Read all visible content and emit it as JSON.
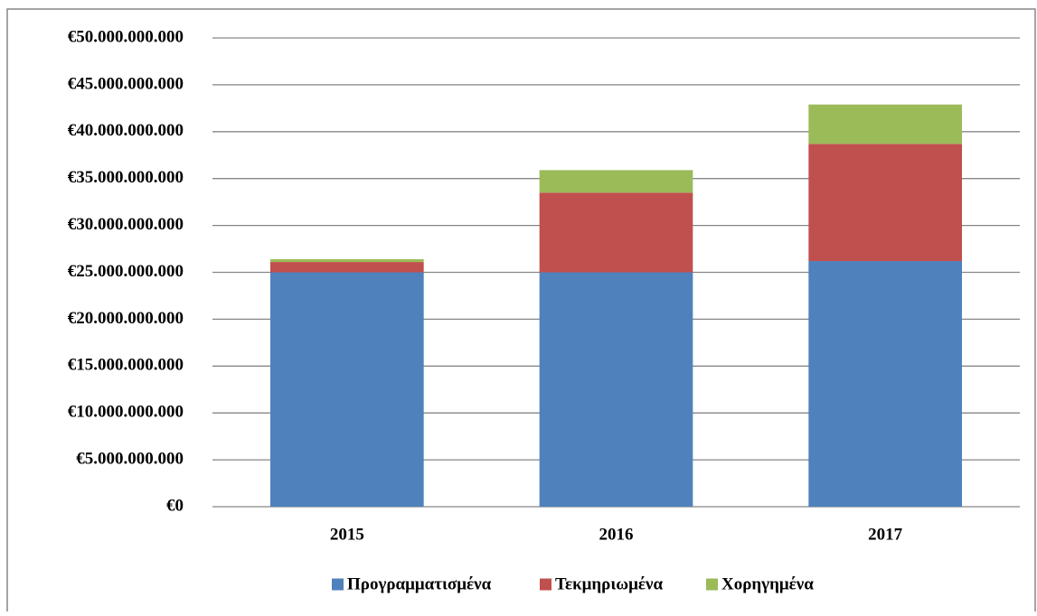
{
  "chart_data": {
    "type": "stacked_bar",
    "categories": [
      "2015",
      "2016",
      "2017"
    ],
    "series": [
      {
        "name": "Προγραμματισμένα",
        "color": "#4f81bd",
        "values": [
          25000000000,
          25000000000,
          26200000000
        ]
      },
      {
        "name": "Τεκμηριωμένα",
        "color": "#c0504d",
        "values": [
          1100000000,
          8500000000,
          12500000000
        ]
      },
      {
        "name": "Χορηγημένα",
        "color": "#9bbb59",
        "values": [
          300000000,
          2400000000,
          4200000000
        ]
      }
    ],
    "ylim": [
      0,
      50000000000
    ],
    "yticks": [
      {
        "value": 0,
        "label": "€0"
      },
      {
        "value": 5000000000,
        "label": "€5.000.000.000"
      },
      {
        "value": 10000000000,
        "label": "€10.000.000.000"
      },
      {
        "value": 15000000000,
        "label": "€15.000.000.000"
      },
      {
        "value": 20000000000,
        "label": "€20.000.000.000"
      },
      {
        "value": 25000000000,
        "label": "€25.000.000.000"
      },
      {
        "value": 30000000000,
        "label": "€30.000.000.000"
      },
      {
        "value": 35000000000,
        "label": "€35.000.000.000"
      },
      {
        "value": 40000000000,
        "label": "€40.000.000.000"
      },
      {
        "value": 45000000000,
        "label": "€45.000.000.000"
      },
      {
        "value": 50000000000,
        "label": "€50.000.000.000"
      }
    ],
    "grid": true,
    "legend": "bottom"
  }
}
